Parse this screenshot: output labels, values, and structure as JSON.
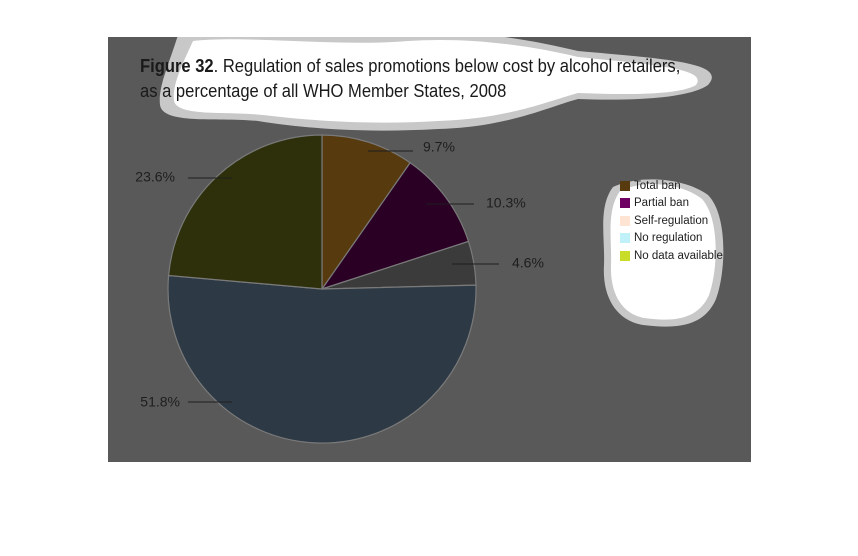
{
  "title": {
    "figure_label": "Figure 32",
    "line1_rest": ". Regulation of sales promotions below cost by alcohol retailers,",
    "line2": "as a percentage of all WHO Member States, 2008"
  },
  "chart_data": {
    "type": "pie",
    "title": "Figure 32. Regulation of sales promotions below cost by alcohol retailers, as a percentage of all WHO Member States, 2008",
    "categories": [
      "Total ban",
      "Partial ban",
      "Self-regulation",
      "No regulation",
      "No data available"
    ],
    "legend_position": "right",
    "slices": [
      {
        "label": "9.7%",
        "value": 9.7,
        "color": "#573a0e"
      },
      {
        "label": "10.3%",
        "value": 10.3,
        "color": "#2b0025"
      },
      {
        "label": "4.6%",
        "value": 4.6,
        "color": "#3b3b3b"
      },
      {
        "label": "51.8%",
        "value": 51.8,
        "color": "#2d3944"
      },
      {
        "label": "23.6%",
        "value": 23.6,
        "color": "#2d300b"
      }
    ]
  },
  "legend": [
    {
      "label": "Total ban",
      "color": "#573a0e"
    },
    {
      "label": "Partial ban",
      "color": "#6e0064"
    },
    {
      "label": "Self-regulation",
      "color": "#ffe4d4"
    },
    {
      "label": "No regulation",
      "color": "#c0f0f8"
    },
    {
      "label": "No data available",
      "color": "#c8dc28"
    }
  ]
}
